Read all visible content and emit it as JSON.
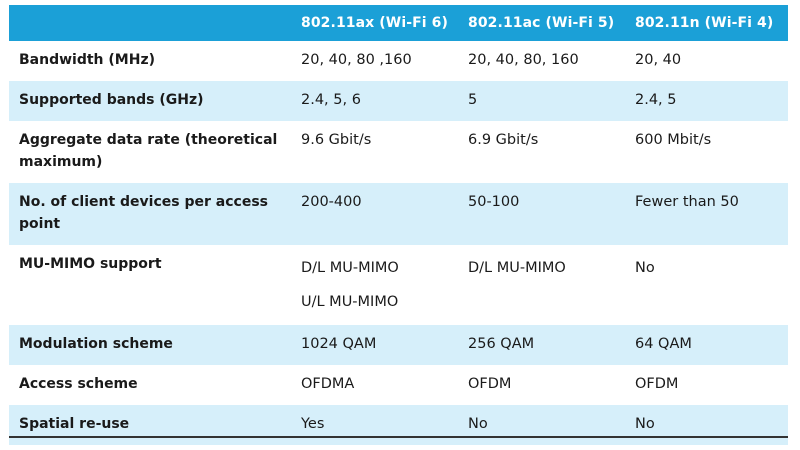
{
  "table": {
    "headers": [
      "",
      "802.11ax (Wi-Fi 6)",
      "802.11ac (Wi-Fi 5)",
      "802.11n (Wi-Fi 4)"
    ],
    "rows": [
      {
        "label": "Bandwidth (MHz)",
        "values": [
          "20, 40, 80 ,160",
          "20, 40, 80, 160",
          "20, 40"
        ]
      },
      {
        "label": "Supported bands (GHz)",
        "values": [
          "2.4, 5, 6",
          "5",
          "2.4, 5"
        ]
      },
      {
        "label": "Aggregate data rate (theoretical maximum)",
        "values": [
          "9.6 Gbit/s",
          "6.9 Gbit/s",
          "600 Mbit/s"
        ]
      },
      {
        "label": "No. of client devices per access point",
        "values": [
          "200-400",
          "50-100",
          "Fewer than 50"
        ]
      },
      {
        "label": "MU-MIMO support",
        "values": [
          [
            "D/L MU-MIMO",
            "U/L MU-MIMO"
          ],
          [
            "D/L MU-MIMO"
          ],
          [
            "No"
          ]
        ]
      },
      {
        "label": "Modulation scheme",
        "values": [
          "1024 QAM",
          "256 QAM",
          "64 QAM"
        ]
      },
      {
        "label": "Access scheme",
        "values": [
          "OFDMA",
          "OFDM",
          "OFDM"
        ]
      },
      {
        "label": "Spatial re-use",
        "values": [
          "Yes",
          "No",
          "No"
        ]
      }
    ]
  },
  "colors": {
    "header_bg": "#1ba0d7",
    "alt_row_bg": "#d6effa",
    "header_text": "#ffffff"
  }
}
